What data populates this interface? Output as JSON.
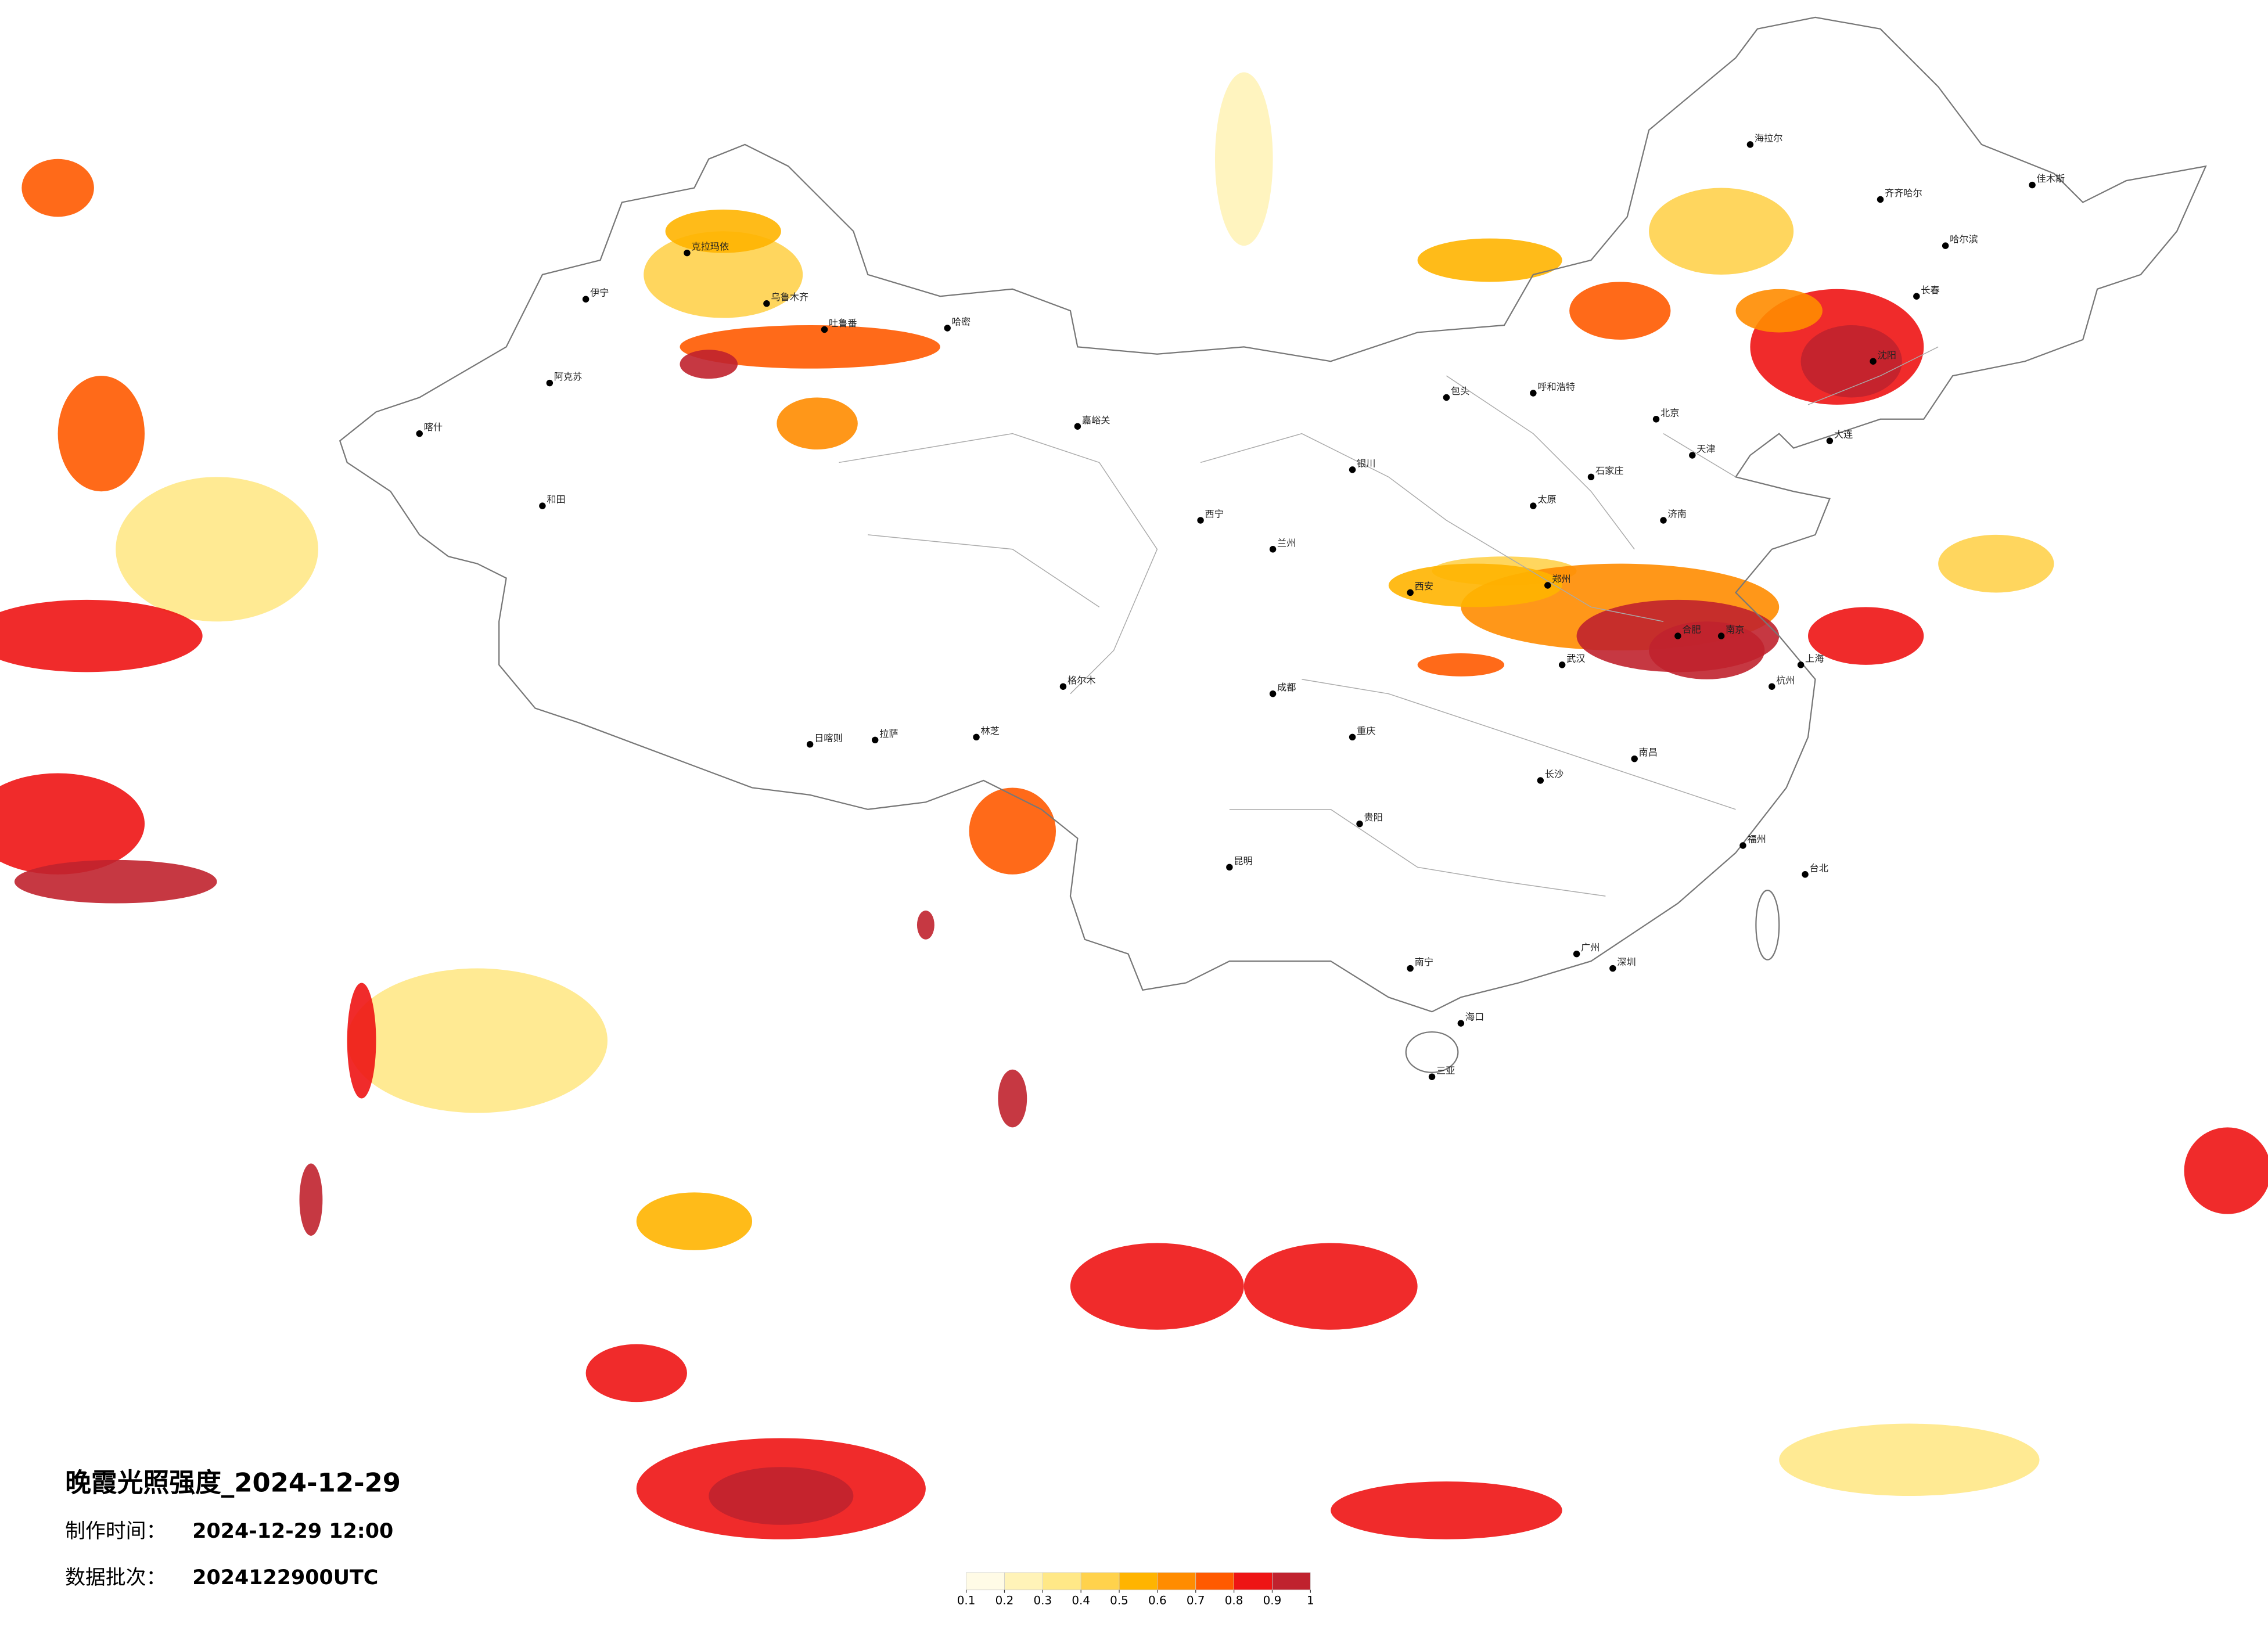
{
  "title": "晚霞光照强度_2024-12-29",
  "production_time": {
    "label": "制作时间：",
    "value": "2024-12-29 12:00"
  },
  "data_batch": {
    "label": "数据批次：",
    "value": "2024122900UTC"
  },
  "colorbar": {
    "colors": [
      "#fffbe6",
      "#fff3b8",
      "#ffe887",
      "#ffd24c",
      "#ffb400",
      "#ff8c00",
      "#ff5a00",
      "#ee1414",
      "#c0222e"
    ],
    "ticks": [
      0.1,
      0.2,
      0.3,
      0.4,
      0.5,
      0.6,
      0.7,
      0.8,
      0.9,
      1
    ]
  },
  "cities": [
    "克拉玛依",
    "伊宁",
    "阿克苏",
    "和田",
    "喀什",
    "哈密",
    "乌鲁木齐",
    "吐鲁番",
    "嘉峪关",
    "格尔木",
    "拉萨",
    "日喀则",
    "林芝",
    "西宁",
    "兰州",
    "银川",
    "呼和浩特",
    "包头",
    "北京",
    "天津",
    "石家庄",
    "太原",
    "西安",
    "郑州",
    "济南",
    "南京",
    "上海",
    "杭州",
    "合肥",
    "武汉",
    "长沙",
    "南昌",
    "福州",
    "台北",
    "广州",
    "深圳",
    "南宁",
    "海口",
    "三亚",
    "贵阳",
    "昆明",
    "成都",
    "重庆",
    "沈阳",
    "长春",
    "哈尔滨",
    "齐齐哈尔",
    "海拉尔",
    "佳木斯",
    "大连"
  ]
}
